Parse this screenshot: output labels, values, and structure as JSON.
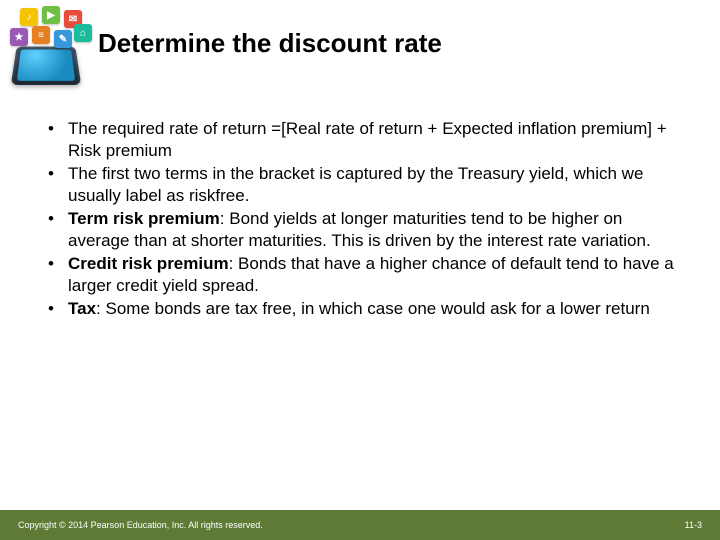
{
  "title": "Determine the discount rate",
  "bullets": [
    {
      "lead": "",
      "text": "The required rate of return =[Real rate of return + Expected inflation premium] + Risk premium"
    },
    {
      "lead": "",
      "text": "The first two terms in the bracket is captured by the Treasury yield, which we usually label as riskfree."
    },
    {
      "lead": "Term risk premium",
      "text": ": Bond yields at longer maturities tend to be higher on average than at shorter maturities. This is driven by the interest rate variation."
    },
    {
      "lead": "Credit risk premium",
      "text": ": Bonds that have a higher chance of default tend to have a larger credit yield spread."
    },
    {
      "lead": "Tax",
      "text": ": Some bonds are tax free, in which case one would ask for a lower return"
    }
  ],
  "footer": {
    "copyright": "Copyright © 2014 Pearson Education, Inc. All rights reserved.",
    "pagenum": "11-3"
  },
  "colors": {
    "footer_bg": "#5e7a35",
    "text": "#000000",
    "footer_text": "#ffffff"
  }
}
